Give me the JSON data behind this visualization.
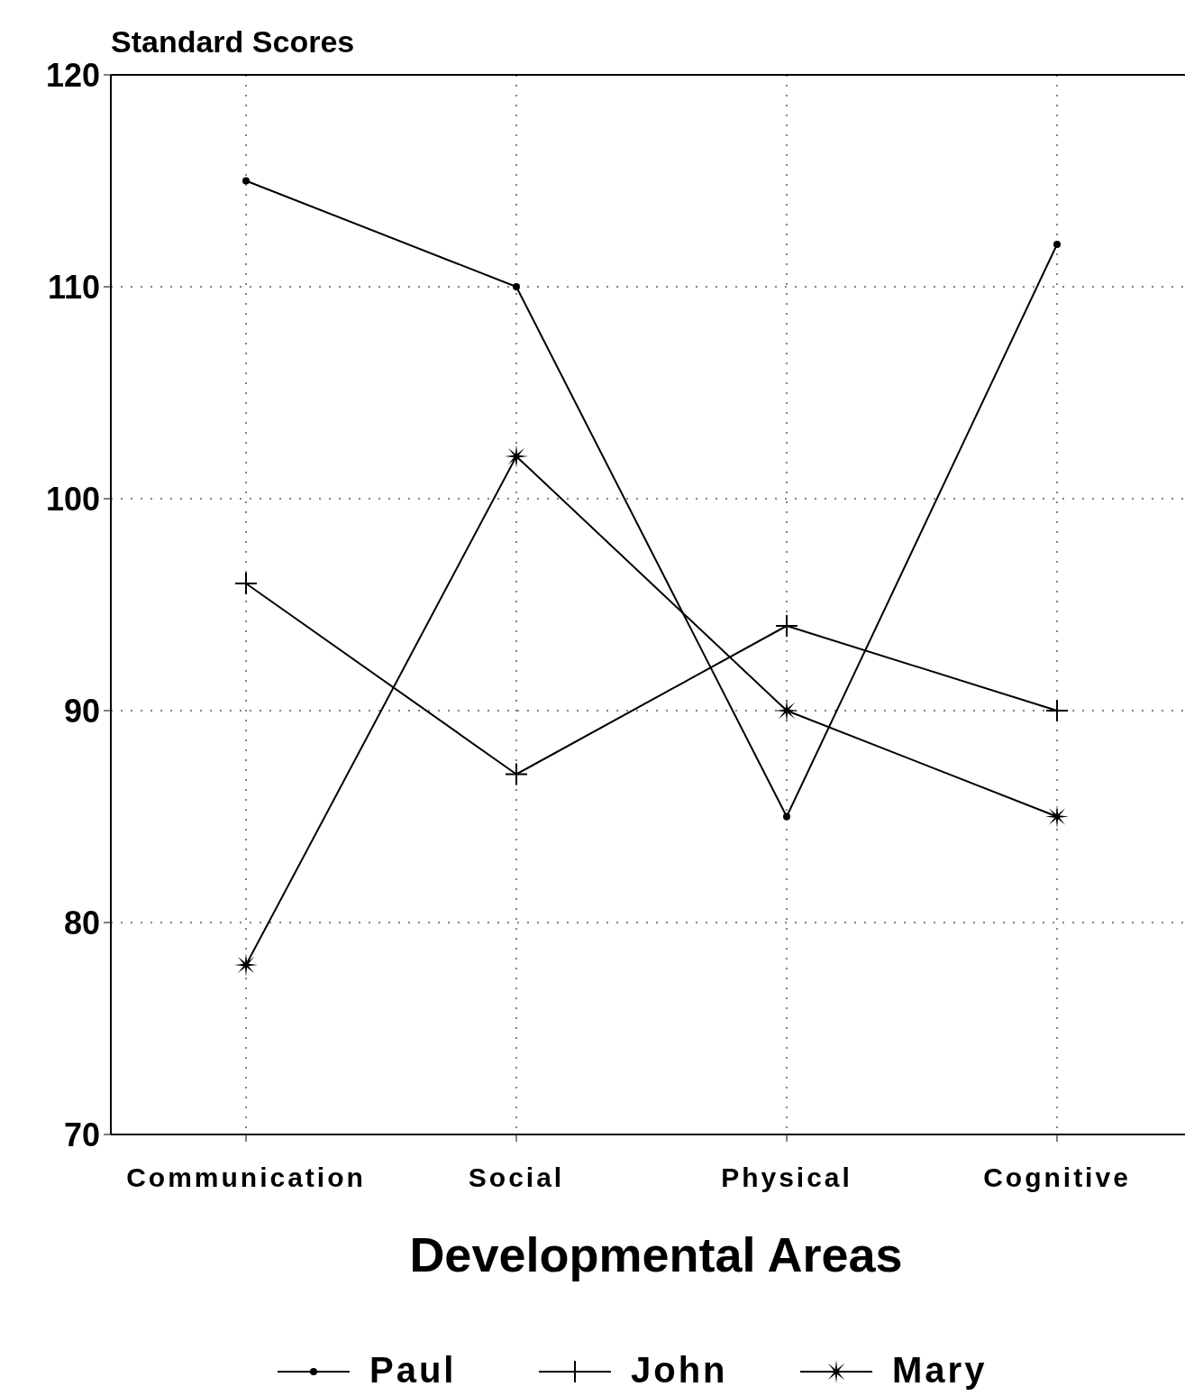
{
  "chart_data": {
    "type": "line",
    "ylabel": "Standard Scores",
    "xlabel": "Developmental Areas",
    "categories": [
      "Communication",
      "Social",
      "Physical",
      "Cognitive"
    ],
    "series": [
      {
        "name": "Paul",
        "color": "#000000",
        "marker": "circle",
        "values": [
          115,
          110,
          85,
          112
        ]
      },
      {
        "name": "John",
        "color": "#000000",
        "marker": "cross",
        "values": [
          96,
          87,
          94,
          90
        ]
      },
      {
        "name": "Mary",
        "color": "#000000",
        "marker": "star",
        "values": [
          78,
          102,
          90,
          85
        ]
      }
    ],
    "ylim": [
      70,
      120
    ],
    "yticks": [
      70,
      80,
      90,
      100,
      110,
      120
    ],
    "grid": true,
    "legend": "bottom",
    "line_style": "solid"
  }
}
